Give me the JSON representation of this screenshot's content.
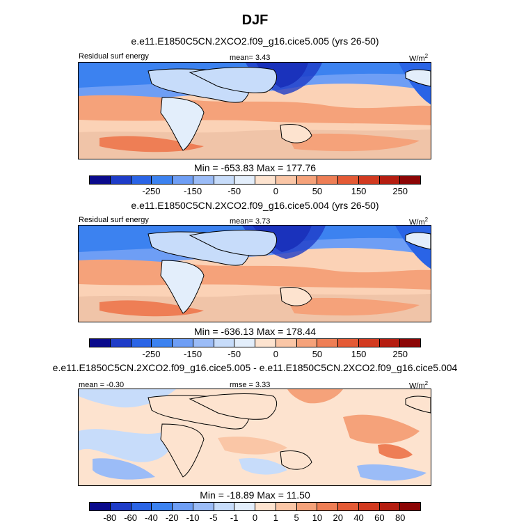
{
  "page": {
    "title": "DJF"
  },
  "panels": [
    {
      "case": "e.e11.E1850C5CN.2XCO2.f09_g16.cice5.005 (yrs 26-50)",
      "left_label": "Residual surf energy",
      "center_label": "mean=   3.43",
      "units": "W/m",
      "units_sup": "2",
      "stats": "Min = -653.83 Max = 177.76"
    },
    {
      "case": "e.e11.E1850C5CN.2XCO2.f09_g16.cice5.004 (yrs 26-50)",
      "left_label": "Residual surf energy",
      "center_label": "mean=   3.73",
      "units": "W/m",
      "units_sup": "2",
      "stats": "Min = -636.13 Max = 178.44"
    },
    {
      "case": "e.e11.E1850C5CN.2XCO2.f09_g16.cice5.005 - e.e11.E1850C5CN.2XCO2.f09_g16.cice5.004",
      "left_label": "mean =  -0.30",
      "center_label": "rmse =   3.33",
      "units": "W/m",
      "units_sup": "2",
      "stats": "Min = -18.89 Max =  11.50"
    }
  ],
  "chart_data": [
    {
      "type": "heatmap",
      "title": "e.e11.E1850C5CN.2XCO2.f09_g16.cice5.005 (yrs 26-50)",
      "variable": "Residual surf energy",
      "mean": 3.43,
      "min": -653.83,
      "max": 177.76,
      "units": "W/m2",
      "colorbar_ticks": [
        "-250",
        "-150",
        "-50",
        "0",
        "50",
        "150",
        "250"
      ],
      "colors": [
        "#0a0a8c",
        "#1e3cc8",
        "#2a64e6",
        "#3c82f0",
        "#6e9ef5",
        "#9bbcf7",
        "#c7dcfa",
        "#e3eefb",
        "#fde3cf",
        "#fac6a6",
        "#f5a27a",
        "#ee7e55",
        "#e45a35",
        "#d23a20",
        "#b51d10",
        "#8c0505"
      ]
    },
    {
      "type": "heatmap",
      "title": "e.e11.E1850C5CN.2XCO2.f09_g16.cice5.004 (yrs 26-50)",
      "variable": "Residual surf energy",
      "mean": 3.73,
      "min": -636.13,
      "max": 178.44,
      "units": "W/m2",
      "colorbar_ticks": [
        "-250",
        "-150",
        "-50",
        "0",
        "50",
        "150",
        "250"
      ],
      "colors": [
        "#0a0a8c",
        "#1e3cc8",
        "#2a64e6",
        "#3c82f0",
        "#6e9ef5",
        "#9bbcf7",
        "#c7dcfa",
        "#e3eefb",
        "#fde3cf",
        "#fac6a6",
        "#f5a27a",
        "#ee7e55",
        "#e45a35",
        "#d23a20",
        "#b51d10",
        "#8c0505"
      ]
    },
    {
      "type": "heatmap",
      "title": "e.e11.E1850C5CN.2XCO2.f09_g16.cice5.005 - e.e11.E1850C5CN.2XCO2.f09_g16.cice5.004",
      "mean": -0.3,
      "rmse": 3.33,
      "min": -18.89,
      "max": 11.5,
      "units": "W/m2",
      "colorbar_ticks": [
        "-80",
        "-60",
        "-40",
        "-20",
        "-10",
        "-5",
        "-1",
        "0",
        "1",
        "5",
        "10",
        "20",
        "40",
        "60",
        "80"
      ],
      "colors": [
        "#0a0a8c",
        "#1e3cc8",
        "#2a64e6",
        "#3c82f0",
        "#6e9ef5",
        "#9bbcf7",
        "#c7dcfa",
        "#e3eefb",
        "#fde3cf",
        "#fac6a6",
        "#f5a27a",
        "#ee7e55",
        "#e45a35",
        "#d23a20",
        "#b51d10",
        "#8c0505"
      ]
    }
  ]
}
